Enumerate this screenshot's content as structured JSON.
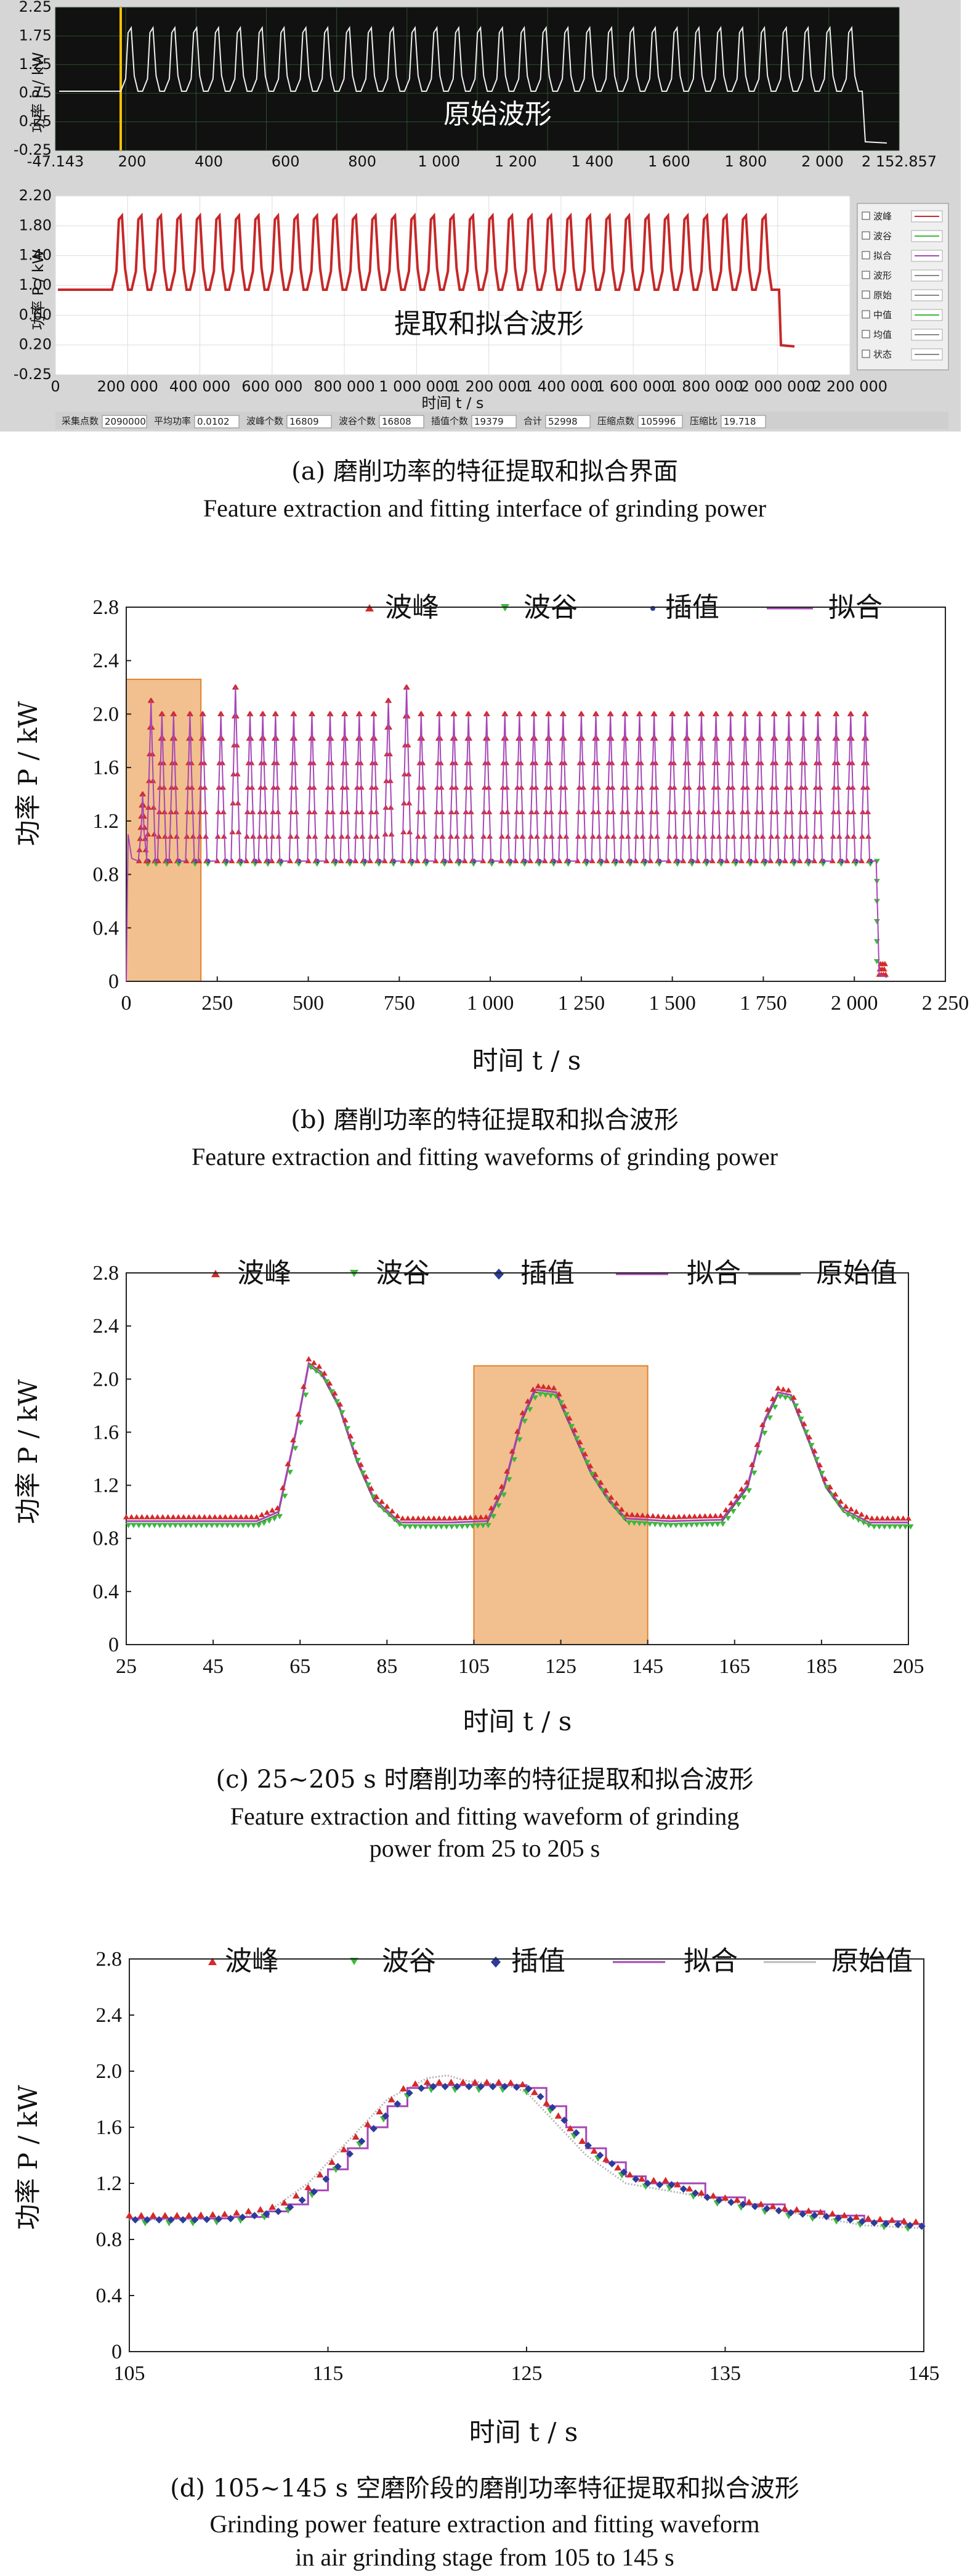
{
  "panel_a": {
    "top_chart": {
      "ylabel": "功率 P / kW",
      "yticks": [
        "2.25",
        "1.75",
        "1.25",
        "0.75",
        "0.25",
        "-0.25"
      ],
      "xticks": [
        "-47.143",
        "200",
        "400",
        "600",
        "800",
        "1 000",
        "1 200",
        "1 400",
        "1 600",
        "1 800",
        "2 000",
        "2 152.857"
      ],
      "overlay": "原始波形"
    },
    "bottom_chart": {
      "ylabel": "功率 P / kW",
      "yticks": [
        "2.20",
        "1.80",
        "1.40",
        "1.00",
        "0.60",
        "0.20",
        "-0.25"
      ],
      "xticks": [
        "0",
        "200 000",
        "400 000",
        "600 000",
        "800 000",
        "1 000 000",
        "1 200 000",
        "1 400 000",
        "1 600 000",
        "1 800 000",
        "2 000 000",
        "2 200 000"
      ],
      "xlabel": "时间 t / s",
      "overlay": "提取和拟合波形"
    },
    "legend_items": [
      "波峰",
      "波谷",
      "拟合",
      "波形",
      "原始",
      "中值",
      "均值",
      "状态"
    ],
    "status_fields": [
      {
        "label": "采集点数",
        "value": "2090000"
      },
      {
        "label": "平均功率",
        "value": "0.0102"
      },
      {
        "label": "波峰个数",
        "value": "16809"
      },
      {
        "label": "波谷个数",
        "value": "16808"
      },
      {
        "label": "插值个数",
        "value": "19379"
      },
      {
        "label": "合计",
        "value": "52998"
      },
      {
        "label": "压缩点数",
        "value": "105996"
      },
      {
        "label": "压缩比",
        "value": "19.718"
      }
    ],
    "caption_zh": "(a) 磨削功率的特征提取和拟合界面",
    "caption_en": "Feature extraction and fitting interface of grinding power"
  },
  "panel_b": {
    "legend": [
      "波峰",
      "波谷",
      "插值",
      "拟合"
    ],
    "ylabel": "功率 P / kW",
    "xlabel": "时间 t / s",
    "yticks": [
      "0",
      "0.4",
      "0.8",
      "1.2",
      "1.6",
      "2.0",
      "2.4",
      "2.8"
    ],
    "xticks": [
      "0",
      "250",
      "500",
      "750",
      "1 000",
      "1 250",
      "1 500",
      "1 750",
      "2 000",
      "2 250"
    ],
    "caption_zh": "(b) 磨削功率的特征提取和拟合波形",
    "caption_en": "Feature extraction and fitting waveforms of grinding power"
  },
  "panel_c": {
    "legend": [
      "波峰",
      "波谷",
      "插值",
      "拟合",
      "原始值"
    ],
    "ylabel": "功率 P / kW",
    "xlabel": "时间 t / s",
    "yticks": [
      "0",
      "0.4",
      "0.8",
      "1.2",
      "1.6",
      "2.0",
      "2.4",
      "2.8"
    ],
    "xticks": [
      "25",
      "45",
      "65",
      "85",
      "105",
      "125",
      "145",
      "165",
      "185",
      "205"
    ],
    "caption_zh": "(c) 25~205 s 时磨削功率的特征提取和拟合波形",
    "caption_en1": "Feature extraction and fitting waveform of grinding",
    "caption_en2": "power from 25 to 205 s"
  },
  "panel_d": {
    "legend": [
      "波峰",
      "波谷",
      "插值",
      "拟合",
      "原始值"
    ],
    "ylabel": "功率 P / kW",
    "xlabel": "时间 t / s",
    "yticks": [
      "0",
      "0.4",
      "0.8",
      "1.2",
      "1.6",
      "2.0",
      "2.4",
      "2.8"
    ],
    "xticks": [
      "105",
      "115",
      "125",
      "135",
      "145"
    ],
    "caption_zh": "(d) 105~145 s 空磨阶段的磨削功率特征提取和拟合波形",
    "caption_en1": "Grinding power feature extraction and fitting waveform",
    "caption_en2": "in air grinding stage from 105 to 145 s"
  },
  "colors": {
    "peak": "#d42a2a",
    "valley": "#3cb83c",
    "interp": "#2b3c9a",
    "fit": "#a646b6",
    "raw": "#8a8a8a",
    "highlight": "#f0b57a"
  },
  "chart_data": [
    {
      "type": "line",
      "panel": "b",
      "xlim": [
        0,
        2250
      ],
      "ylim": [
        0,
        2.8
      ],
      "baseline": 0.9,
      "peak_times": [
        45,
        68,
        98,
        130,
        175,
        210,
        260,
        300,
        340,
        375,
        410,
        460,
        510,
        560,
        600,
        640,
        680,
        720,
        770,
        810,
        860,
        900,
        940,
        990,
        1040,
        1080,
        1120,
        1160,
        1200,
        1250,
        1290,
        1330,
        1370,
        1410,
        1450,
        1500,
        1540,
        1580,
        1620,
        1660,
        1700,
        1740,
        1780,
        1820,
        1860,
        1900,
        1950,
        1990,
        2030
      ],
      "peak_values": [
        1.4,
        2.1,
        2.0,
        2.0,
        2.0,
        2.0,
        2.0,
        2.2,
        2.0,
        2.0,
        2.0,
        2.0,
        2.0,
        2.0,
        2.0,
        2.0,
        2.0,
        2.1,
        2.2,
        2.0,
        2.0,
        2.0,
        2.0,
        2.0,
        2.0,
        2.0,
        2.0,
        2.0,
        2.0,
        2.0,
        2.0,
        2.0,
        2.0,
        2.0,
        2.0,
        2.0,
        2.0,
        2.0,
        2.0,
        2.0,
        2.0,
        2.0,
        2.0,
        2.0,
        2.0,
        2.0,
        2.0,
        2.0,
        2.0
      ],
      "end_drop_x": 2060,
      "highlight_x": [
        0,
        205
      ]
    },
    {
      "type": "line",
      "panel": "c",
      "xlim": [
        25,
        205
      ],
      "ylim": [
        0,
        2.8
      ],
      "series": [
        {
          "name": "拟合",
          "x": [
            25,
            55,
            60,
            64,
            67,
            70,
            74,
            78,
            82,
            88,
            100,
            108,
            112,
            116,
            119,
            124,
            128,
            132,
            136,
            140,
            150,
            162,
            168,
            172,
            175,
            178,
            182,
            186,
            190,
            196,
            205
          ],
          "y": [
            0.93,
            0.93,
            1.0,
            1.6,
            2.12,
            2.05,
            1.8,
            1.4,
            1.1,
            0.92,
            0.92,
            0.93,
            1.2,
            1.7,
            1.92,
            1.9,
            1.6,
            1.3,
            1.1,
            0.95,
            0.93,
            0.94,
            1.2,
            1.7,
            1.9,
            1.88,
            1.55,
            1.2,
            1.02,
            0.92,
            0.92
          ]
        }
      ],
      "highlight_x": [
        105,
        145
      ]
    },
    {
      "type": "line",
      "panel": "d",
      "xlim": [
        105,
        145
      ],
      "ylim": [
        0,
        2.8
      ],
      "series": [
        {
          "name": "拟合",
          "x": [
            105,
            108,
            110,
            112,
            113,
            114,
            115,
            116,
            117,
            118,
            119,
            120,
            122,
            124,
            125,
            126,
            127,
            128,
            129,
            130,
            131,
            132,
            134,
            136,
            138,
            140,
            142,
            144,
            145
          ],
          "y": [
            0.95,
            0.95,
            0.96,
            1.0,
            1.05,
            1.15,
            1.3,
            1.45,
            1.6,
            1.75,
            1.88,
            1.9,
            1.9,
            1.9,
            1.88,
            1.75,
            1.6,
            1.45,
            1.35,
            1.25,
            1.2,
            1.2,
            1.1,
            1.05,
            1.0,
            0.97,
            0.93,
            0.91,
            0.9
          ]
        },
        {
          "name": "原始值",
          "x": [
            105,
            110,
            112,
            114,
            116,
            118,
            120,
            121,
            122,
            124,
            125,
            126,
            128,
            130,
            132,
            134,
            136,
            138,
            140,
            142,
            145
          ],
          "y": [
            0.94,
            0.95,
            1.0,
            1.2,
            1.5,
            1.8,
            1.95,
            1.97,
            1.93,
            1.9,
            1.85,
            1.7,
            1.4,
            1.2,
            1.15,
            1.1,
            1.05,
            1.0,
            0.95,
            0.9,
            0.88
          ]
        }
      ]
    }
  ]
}
